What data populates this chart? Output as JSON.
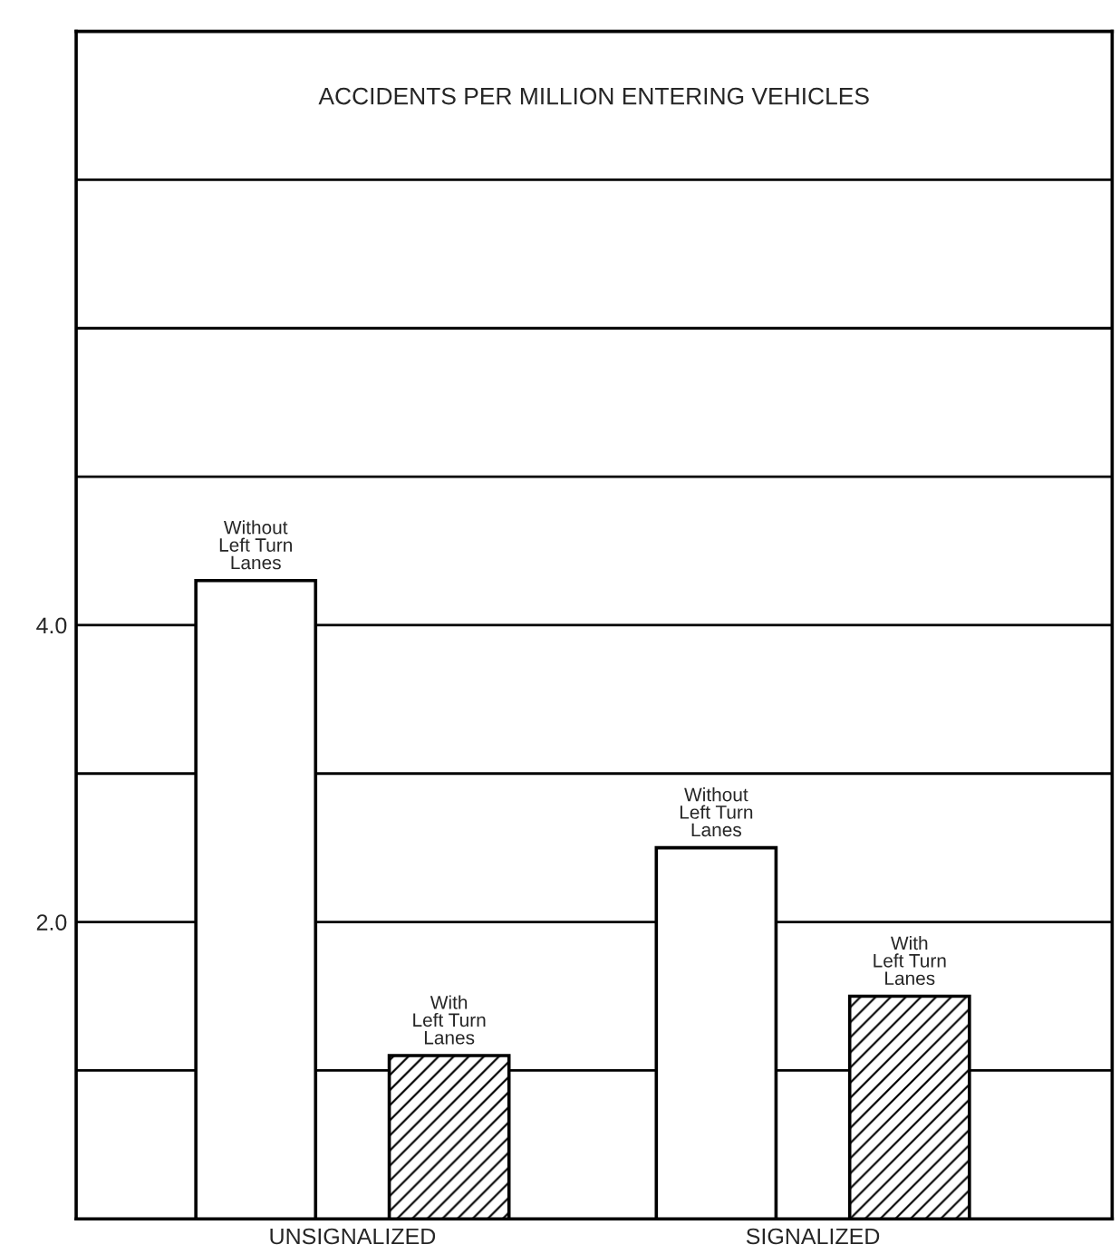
{
  "chart_data": {
    "type": "bar",
    "title": "ACCIDENTS PER MILLION ENTERING VEHICLES",
    "categories": [
      "UNSIGNALIZED",
      "SIGNALIZED"
    ],
    "series": [
      {
        "name": "Without Left Turn Lanes",
        "color": "#ffffff",
        "values": [
          4.3,
          2.5
        ]
      },
      {
        "name": "With Left Turn Lanes",
        "color": "#000000",
        "values": [
          1.1,
          1.5
        ]
      }
    ],
    "ylim": [
      0,
      8
    ],
    "yticks": [
      {
        "value": 1,
        "label": null
      },
      {
        "value": 2,
        "label": "2.0"
      },
      {
        "value": 3,
        "label": null
      },
      {
        "value": 4,
        "label": "4.0"
      },
      {
        "value": 5,
        "label": null
      },
      {
        "value": 6,
        "label": null
      },
      {
        "value": 7,
        "label": null
      }
    ],
    "grid": "y",
    "legend": false
  }
}
